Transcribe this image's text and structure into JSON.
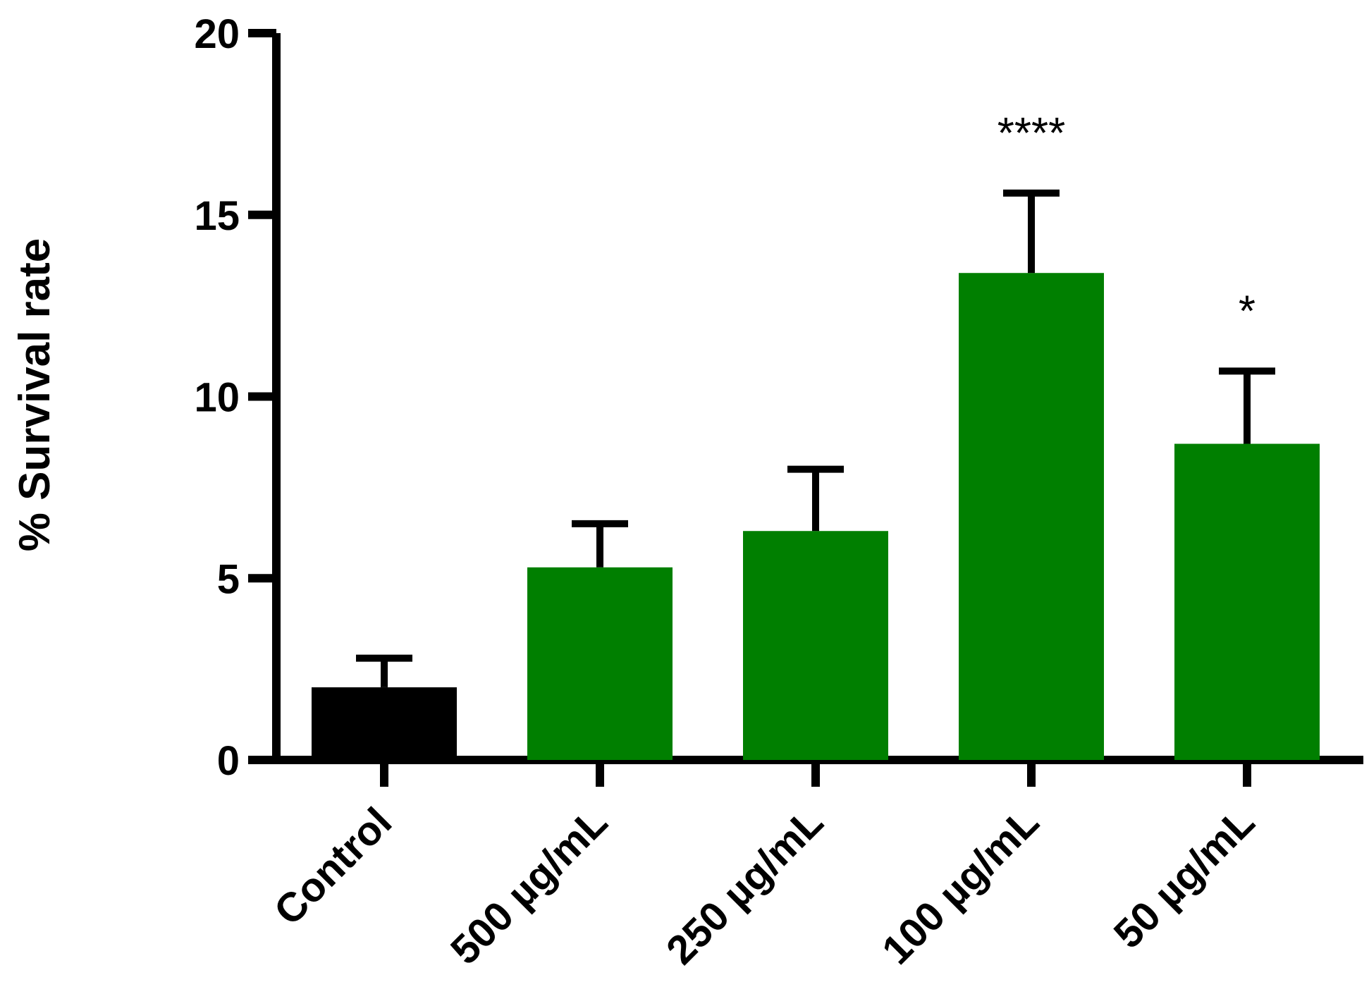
{
  "chart_data": {
    "type": "bar",
    "title": "",
    "xlabel": "",
    "ylabel": "% Survival rate",
    "ylim": [
      0,
      20
    ],
    "yticks": [
      0,
      5,
      10,
      15,
      20
    ],
    "grid": false,
    "categories": [
      "Control",
      "500 µg/mL",
      "250 µg/mL",
      "100 µg/mL",
      "50 µg/mL"
    ],
    "values": [
      2.0,
      5.3,
      6.3,
      13.4,
      8.7
    ],
    "error_upper": [
      0.8,
      1.2,
      1.7,
      2.2,
      2.0
    ],
    "significance": [
      "",
      "",
      "",
      "****",
      "*"
    ],
    "colors": [
      "#000000",
      "#007f00",
      "#007f00",
      "#007f00",
      "#007f00"
    ]
  }
}
